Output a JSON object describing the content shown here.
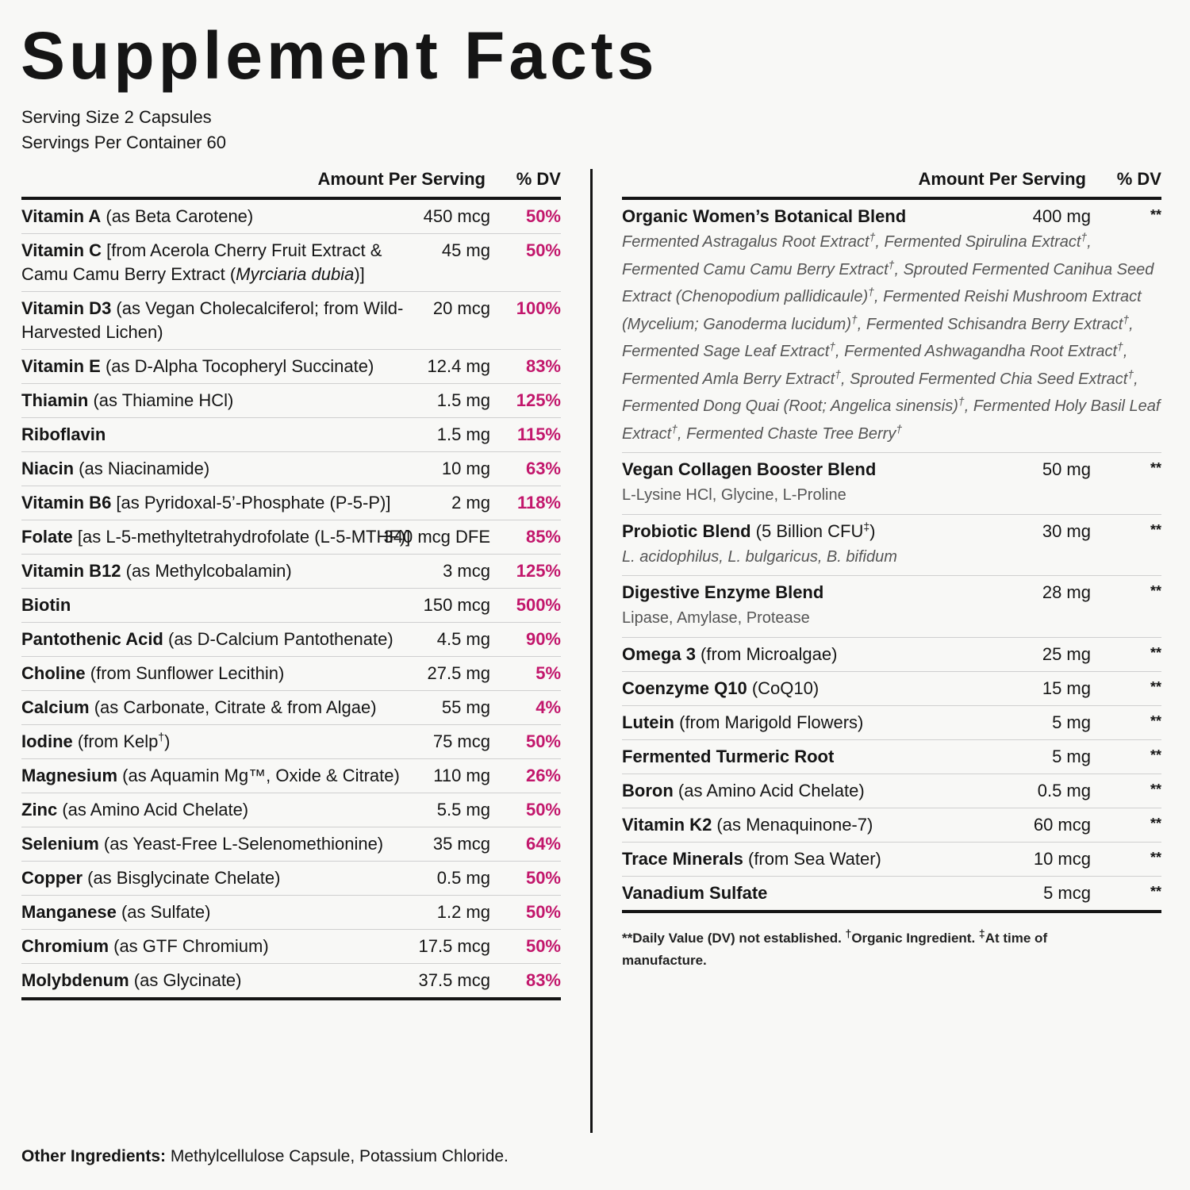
{
  "title": "Supplement Facts",
  "serving_size": "Serving Size 2 Capsules",
  "servings_per_container": "Servings Per Container 60",
  "header": {
    "amount": "Amount Per Serving",
    "dv": "% DV"
  },
  "left": [
    {
      "name": "Vitamin A",
      "desc": " (as Beta Carotene)",
      "amount": "450 mcg",
      "dv": "50%"
    },
    {
      "name": "Vitamin C",
      "desc": " [from Acerola Cherry Fruit Extract & Camu Camu Berry Extract (",
      "desc_it": "Myrciaria dubia",
      "desc_end": ")]",
      "amount": "45 mg",
      "dv": "50%"
    },
    {
      "name": "Vitamin D3",
      "desc": " (as Vegan Cholecalciferol; from Wild-Harvested Lichen)",
      "amount": "20 mcg",
      "dv": "100%"
    },
    {
      "name": "Vitamin E",
      "desc": " (as D-Alpha Tocopheryl Succinate)",
      "amount": "12.4 mg",
      "dv": "83%"
    },
    {
      "name": "Thiamin",
      "desc": " (as Thiamine HCl)",
      "amount": "1.5 mg",
      "dv": "125%"
    },
    {
      "name": "Riboflavin",
      "desc": "",
      "amount": "1.5 mg",
      "dv": "115%"
    },
    {
      "name": "Niacin",
      "desc": " (as Niacinamide)",
      "amount": "10 mg",
      "dv": "63%"
    },
    {
      "name": "Vitamin B6",
      "desc": " [as Pyridoxal-5’-Phosphate (P-5-P)]",
      "amount": "2 mg",
      "dv": "118%"
    },
    {
      "name": "Folate",
      "desc": " [as L-5-methyltetrahydrofolate (L-5-MTHF)]",
      "amount": "340 mcg DFE",
      "dv": "85%"
    },
    {
      "name": "Vitamin B12",
      "desc": " (as Methylcobalamin)",
      "amount": "3 mcg",
      "dv": "125%"
    },
    {
      "name": "Biotin",
      "desc": "",
      "amount": "150 mcg",
      "dv": "500%"
    },
    {
      "name": "Pantothenic Acid",
      "desc": " (as D-Calcium Pantothenate)",
      "amount": "4.5 mg",
      "dv": "90%"
    },
    {
      "name": "Choline",
      "desc": " (from Sunflower Lecithin)",
      "amount": "27.5 mg",
      "dv": "5%"
    },
    {
      "name": "Calcium",
      "desc": " (as Carbonate, Citrate & from Algae)",
      "amount": "55 mg",
      "dv": "4%"
    },
    {
      "name": "Iodine",
      "desc": " (from Kelp",
      "desc_sup": "†",
      "desc_end": ")",
      "amount": "75 mcg",
      "dv": "50%"
    },
    {
      "name": "Magnesium",
      "desc": " (as Aquamin Mg™, Oxide & Citrate)",
      "amount": "110 mg",
      "dv": "26%"
    },
    {
      "name": "Zinc",
      "desc": " (as Amino Acid Chelate)",
      "amount": "5.5 mg",
      "dv": "50%"
    },
    {
      "name": "Selenium",
      "desc": " (as Yeast-Free L-Selenomethionine)",
      "amount": "35 mcg",
      "dv": "64%"
    },
    {
      "name": "Copper",
      "desc": " (as Bisglycinate Chelate)",
      "amount": "0.5 mg",
      "dv": "50%"
    },
    {
      "name": "Manganese",
      "desc": " (as Sulfate)",
      "amount": "1.2 mg",
      "dv": "50%"
    },
    {
      "name": "Chromium",
      "desc": " (as GTF Chromium)",
      "amount": "17.5 mcg",
      "dv": "50%"
    },
    {
      "name": "Molybdenum",
      "desc": " (as Glycinate)",
      "amount": "37.5 mcg",
      "dv": "83%"
    }
  ],
  "right": [
    {
      "name": "Organic Women’s Botanical Blend",
      "desc": "",
      "amount": "400 mg",
      "dv": "**",
      "italic_sub": true,
      "sub": [
        "Fermented Astragalus Root Extract",
        ", Fermented Spirulina Extract",
        ", Fermented Camu Camu Berry Extract",
        ", Sprouted Fermented Canihua Seed Extract (Chenopodium pallidicaule)",
        ", Fermented Reishi Mushroom Extract (Mycelium; Ganoderma lucidum)",
        ", Fermented Schisandra Berry Extract",
        ", Fermented Sage Leaf Extract",
        ", Fermented Ashwagandha Root Extract",
        ", Fermented Amla Berry Extract",
        ", Sprouted Fermented Chia Seed Extract",
        ", Fermented Dong Quai (Root; Angelica sinensis)",
        ", Fermented Holy Basil Leaf Extract",
        ", Fermented Chaste Tree Berry"
      ]
    },
    {
      "name": "Vegan Collagen Booster Blend",
      "desc": "",
      "amount": "50 mg",
      "dv": "**",
      "sub_text": "L-Lysine HCl, Glycine, L-Proline"
    },
    {
      "name": "Probiotic Blend",
      "desc": " (5 Billion CFU",
      "desc_sup": "‡",
      "desc_end": ")",
      "amount": "30 mg",
      "dv": "**",
      "sub_text": "L. acidophilus, L. bulgaricus, B. bifidum",
      "sub_italic": true
    },
    {
      "name": "Digestive Enzyme Blend",
      "desc": "",
      "amount": "28 mg",
      "dv": "**",
      "sub_text": "Lipase, Amylase, Protease"
    },
    {
      "name": "Omega 3",
      "desc": " (from Microalgae)",
      "amount": "25 mg",
      "dv": "**"
    },
    {
      "name": "Coenzyme Q10",
      "desc": " (CoQ10)",
      "amount": "15 mg",
      "dv": "**"
    },
    {
      "name": "Lutein",
      "desc": " (from Marigold Flowers)",
      "amount": "5 mg",
      "dv": "**"
    },
    {
      "name": "Fermented Turmeric Root",
      "desc": "",
      "amount": "5 mg",
      "dv": "**"
    },
    {
      "name": "Boron",
      "desc": " (as Amino Acid Chelate)",
      "amount": "0.5 mg",
      "dv": "**"
    },
    {
      "name": "Vitamin K2",
      "desc": " (as Menaquinone-7)",
      "amount": "60 mcg",
      "dv": "**"
    },
    {
      "name": "Trace Minerals",
      "desc": " (from Sea Water)",
      "amount": "10 mcg",
      "dv": "**"
    },
    {
      "name": "Vanadium Sulfate",
      "desc": "",
      "amount": "5 mcg",
      "dv": "**"
    }
  ],
  "dagger": "†",
  "footnote": {
    "a": "**Daily Value (DV) not established. ",
    "dagger": "†",
    "b": "Organic Ingredient. ",
    "ddagger": "‡",
    "c": "At time of manufacture."
  },
  "other_label": "Other Ingredients:",
  "other_text": " Methylcellulose Capsule, Potassium Chloride."
}
